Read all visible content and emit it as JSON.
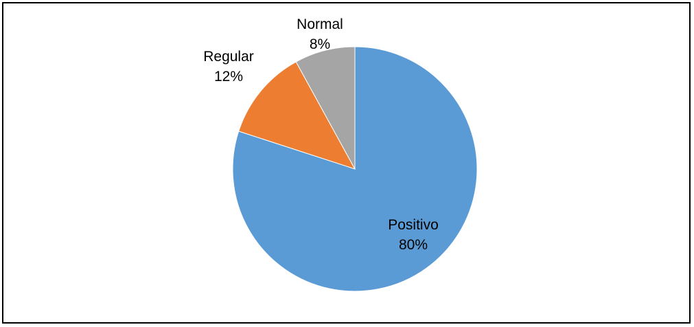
{
  "chart_data": {
    "type": "pie",
    "title": "",
    "slices": [
      {
        "label": "Positivo",
        "value": 80,
        "percent_label": "80%",
        "color": "#5B9BD5"
      },
      {
        "label": "Regular",
        "value": 12,
        "percent_label": "12%",
        "color": "#ED7D31"
      },
      {
        "label": "Normal",
        "value": 8,
        "percent_label": "8%",
        "color": "#A5A5A5"
      }
    ],
    "start": "12 o'clock",
    "direction": "clockwise",
    "legend": "none",
    "data_labels": "category name and percentage"
  }
}
